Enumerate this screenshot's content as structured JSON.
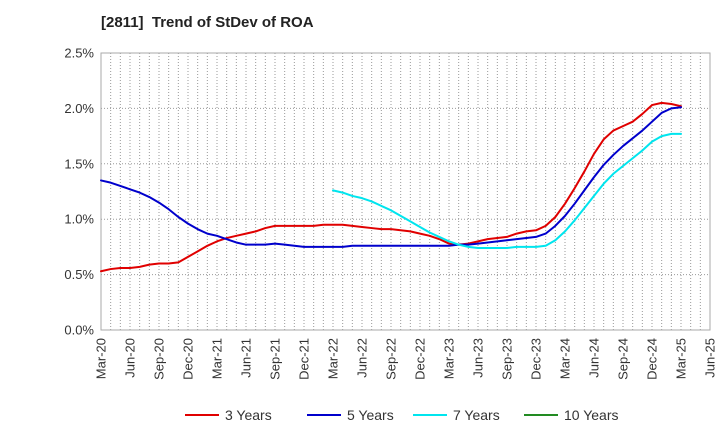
{
  "chart_data": {
    "type": "line",
    "title": "[2811]  Trend of StDev of ROA",
    "xlabel": "",
    "ylabel": "",
    "ylim": [
      0,
      0.025
    ],
    "y_ticks": [
      "0.0%",
      "0.5%",
      "1.0%",
      "1.5%",
      "2.0%",
      "2.5%"
    ],
    "x_ticks": [
      "Mar-20",
      "Jun-20",
      "Sep-20",
      "Dec-20",
      "Mar-21",
      "Jun-21",
      "Sep-21",
      "Dec-21",
      "Mar-22",
      "Jun-22",
      "Sep-22",
      "Dec-22",
      "Mar-23",
      "Jun-23",
      "Sep-23",
      "Dec-23",
      "Mar-24",
      "Jun-24",
      "Sep-24",
      "Dec-24",
      "Mar-25",
      "Jun-25"
    ],
    "grid": true,
    "legend_position": "bottom",
    "x_unit": "month",
    "series": [
      {
        "name": "3 Years",
        "color": "#e00000",
        "points": [
          [
            "Mar-20",
            0.0053
          ],
          [
            "Apr-20",
            0.0055
          ],
          [
            "May-20",
            0.0056
          ],
          [
            "Jun-20",
            0.0056
          ],
          [
            "Jul-20",
            0.0057
          ],
          [
            "Aug-20",
            0.0059
          ],
          [
            "Sep-20",
            0.006
          ],
          [
            "Oct-20",
            0.006
          ],
          [
            "Nov-20",
            0.0061
          ],
          [
            "Dec-20",
            0.0066
          ],
          [
            "Jan-21",
            0.0071
          ],
          [
            "Feb-21",
            0.0076
          ],
          [
            "Mar-21",
            0.008
          ],
          [
            "Apr-21",
            0.0083
          ],
          [
            "May-21",
            0.0085
          ],
          [
            "Jun-21",
            0.0087
          ],
          [
            "Jul-21",
            0.0089
          ],
          [
            "Aug-21",
            0.0092
          ],
          [
            "Sep-21",
            0.0094
          ],
          [
            "Oct-21",
            0.0094
          ],
          [
            "Nov-21",
            0.0094
          ],
          [
            "Dec-21",
            0.0094
          ],
          [
            "Jan-22",
            0.0094
          ],
          [
            "Feb-22",
            0.0095
          ],
          [
            "Mar-22",
            0.0095
          ],
          [
            "Apr-22",
            0.0095
          ],
          [
            "May-22",
            0.0094
          ],
          [
            "Jun-22",
            0.0093
          ],
          [
            "Jul-22",
            0.0092
          ],
          [
            "Aug-22",
            0.0091
          ],
          [
            "Sep-22",
            0.0091
          ],
          [
            "Oct-22",
            0.009
          ],
          [
            "Nov-22",
            0.0089
          ],
          [
            "Dec-22",
            0.0087
          ],
          [
            "Jan-23",
            0.0085
          ],
          [
            "Feb-23",
            0.0082
          ],
          [
            "Mar-23",
            0.0078
          ],
          [
            "Apr-23",
            0.0077
          ],
          [
            "May-23",
            0.0078
          ],
          [
            "Jun-23",
            0.008
          ],
          [
            "Jul-23",
            0.0082
          ],
          [
            "Aug-23",
            0.0083
          ],
          [
            "Sep-23",
            0.0084
          ],
          [
            "Oct-23",
            0.0087
          ],
          [
            "Nov-23",
            0.0089
          ],
          [
            "Dec-23",
            0.009
          ],
          [
            "Jan-24",
            0.0094
          ],
          [
            "Feb-24",
            0.0102
          ],
          [
            "Mar-24",
            0.0114
          ],
          [
            "Apr-24",
            0.0128
          ],
          [
            "May-24",
            0.0143
          ],
          [
            "Jun-24",
            0.0159
          ],
          [
            "Jul-24",
            0.0172
          ],
          [
            "Aug-24",
            0.018
          ],
          [
            "Sep-24",
            0.0184
          ],
          [
            "Oct-24",
            0.0188
          ],
          [
            "Nov-24",
            0.0195
          ],
          [
            "Dec-24",
            0.0203
          ],
          [
            "Jan-25",
            0.0205
          ],
          [
            "Feb-25",
            0.0204
          ],
          [
            "Mar-25",
            0.0202
          ]
        ]
      },
      {
        "name": "5 Years",
        "color": "#0000cc",
        "points": [
          [
            "Mar-20",
            0.0135
          ],
          [
            "Apr-20",
            0.0133
          ],
          [
            "May-20",
            0.013
          ],
          [
            "Jun-20",
            0.0127
          ],
          [
            "Jul-20",
            0.0124
          ],
          [
            "Aug-20",
            0.012
          ],
          [
            "Sep-20",
            0.0115
          ],
          [
            "Oct-20",
            0.0109
          ],
          [
            "Nov-20",
            0.0102
          ],
          [
            "Dec-20",
            0.0096
          ],
          [
            "Jan-21",
            0.0091
          ],
          [
            "Feb-21",
            0.0087
          ],
          [
            "Mar-21",
            0.0085
          ],
          [
            "Apr-21",
            0.0082
          ],
          [
            "May-21",
            0.0079
          ],
          [
            "Jun-21",
            0.0077
          ],
          [
            "Jul-21",
            0.0077
          ],
          [
            "Aug-21",
            0.0077
          ],
          [
            "Sep-21",
            0.0078
          ],
          [
            "Oct-21",
            0.0077
          ],
          [
            "Nov-21",
            0.0076
          ],
          [
            "Dec-21",
            0.0075
          ],
          [
            "Jan-22",
            0.0075
          ],
          [
            "Feb-22",
            0.0075
          ],
          [
            "Mar-22",
            0.0075
          ],
          [
            "Apr-22",
            0.0075
          ],
          [
            "May-22",
            0.0076
          ],
          [
            "Jun-22",
            0.0076
          ],
          [
            "Jul-22",
            0.0076
          ],
          [
            "Aug-22",
            0.0076
          ],
          [
            "Sep-22",
            0.0076
          ],
          [
            "Oct-22",
            0.0076
          ],
          [
            "Nov-22",
            0.0076
          ],
          [
            "Dec-22",
            0.0076
          ],
          [
            "Jan-23",
            0.0076
          ],
          [
            "Feb-23",
            0.0076
          ],
          [
            "Mar-23",
            0.0076
          ],
          [
            "Apr-23",
            0.0077
          ],
          [
            "May-23",
            0.0077
          ],
          [
            "Jun-23",
            0.0078
          ],
          [
            "Jul-23",
            0.0079
          ],
          [
            "Aug-23",
            0.008
          ],
          [
            "Sep-23",
            0.0081
          ],
          [
            "Oct-23",
            0.0082
          ],
          [
            "Nov-23",
            0.0083
          ],
          [
            "Dec-23",
            0.0084
          ],
          [
            "Jan-24",
            0.0087
          ],
          [
            "Feb-24",
            0.0094
          ],
          [
            "Mar-24",
            0.0103
          ],
          [
            "Apr-24",
            0.0114
          ],
          [
            "May-24",
            0.0126
          ],
          [
            "Jun-24",
            0.0138
          ],
          [
            "Jul-24",
            0.0149
          ],
          [
            "Aug-24",
            0.0158
          ],
          [
            "Sep-24",
            0.0166
          ],
          [
            "Oct-24",
            0.0173
          ],
          [
            "Nov-24",
            0.018
          ],
          [
            "Dec-24",
            0.0188
          ],
          [
            "Jan-25",
            0.0196
          ],
          [
            "Feb-25",
            0.02
          ],
          [
            "Mar-25",
            0.0201
          ]
        ]
      },
      {
        "name": "7 Years",
        "color": "#00e5ee",
        "points": [
          [
            "Mar-22",
            0.0126
          ],
          [
            "Apr-22",
            0.0124
          ],
          [
            "May-22",
            0.0121
          ],
          [
            "Jun-22",
            0.0119
          ],
          [
            "Jul-22",
            0.0116
          ],
          [
            "Aug-22",
            0.0112
          ],
          [
            "Sep-22",
            0.0108
          ],
          [
            "Oct-22",
            0.0103
          ],
          [
            "Nov-22",
            0.0098
          ],
          [
            "Dec-22",
            0.0093
          ],
          [
            "Jan-23",
            0.0088
          ],
          [
            "Feb-23",
            0.0084
          ],
          [
            "Mar-23",
            0.008
          ],
          [
            "Apr-23",
            0.0077
          ],
          [
            "May-23",
            0.0075
          ],
          [
            "Jun-23",
            0.0074
          ],
          [
            "Jul-23",
            0.0074
          ],
          [
            "Aug-23",
            0.0074
          ],
          [
            "Sep-23",
            0.0074
          ],
          [
            "Oct-23",
            0.0075
          ],
          [
            "Nov-23",
            0.0075
          ],
          [
            "Dec-23",
            0.0075
          ],
          [
            "Jan-24",
            0.0076
          ],
          [
            "Feb-24",
            0.0081
          ],
          [
            "Mar-24",
            0.0089
          ],
          [
            "Apr-24",
            0.0099
          ],
          [
            "May-24",
            0.011
          ],
          [
            "Jun-24",
            0.0121
          ],
          [
            "Jul-24",
            0.0132
          ],
          [
            "Aug-24",
            0.0141
          ],
          [
            "Sep-24",
            0.0148
          ],
          [
            "Oct-24",
            0.0155
          ],
          [
            "Nov-24",
            0.0162
          ],
          [
            "Dec-24",
            0.017
          ],
          [
            "Jan-25",
            0.0175
          ],
          [
            "Feb-25",
            0.0177
          ],
          [
            "Mar-25",
            0.0177
          ]
        ]
      },
      {
        "name": "10 Years",
        "color": "#228b22",
        "points": []
      }
    ]
  }
}
